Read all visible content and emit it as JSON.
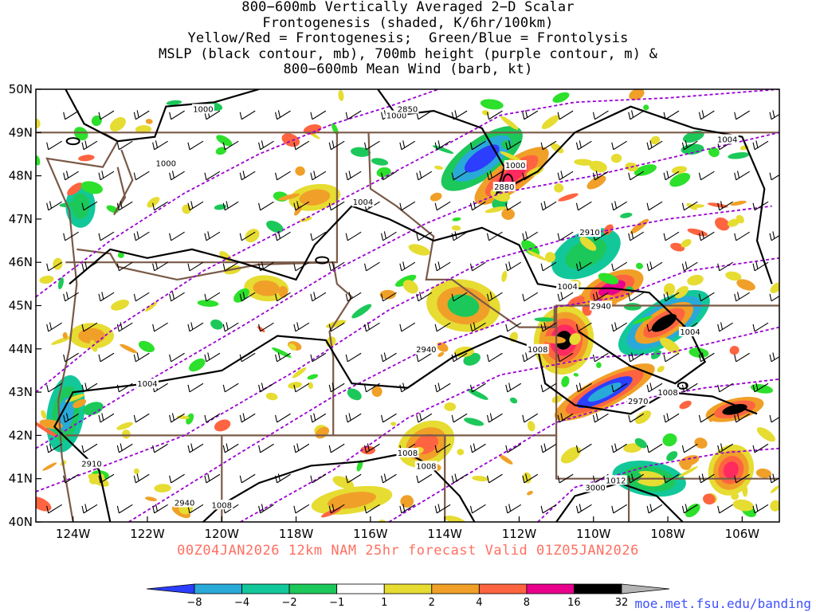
{
  "title_lines": [
    "800−600mb Vertically Averaged 2−D Scalar",
    "Frontogenesis (shaded, K/6hr/100km)",
    "Yellow/Red = Frontogenesis;  Green/Blue = Frontolysis",
    "MSLP (black contour, mb), 700mb height (purple contour, m) &",
    "800−600mb Mean Wind (barb, kt)"
  ],
  "valid_line": "00Z04JAN2026 12km NAM 25hr forecast Valid 01Z05JAN2026",
  "credit": "moe.met.fsu.edu/banding",
  "map": {
    "lon_range": [
      -125,
      -105
    ],
    "lat_range": [
      40,
      50
    ],
    "lon_ticks": [
      {
        "lon": -124,
        "label": "124W"
      },
      {
        "lon": -122,
        "label": "122W"
      },
      {
        "lon": -120,
        "label": "120W"
      },
      {
        "lon": -118,
        "label": "118W"
      },
      {
        "lon": -116,
        "label": "116W"
      },
      {
        "lon": -114,
        "label": "114W"
      },
      {
        "lon": -112,
        "label": "112W"
      },
      {
        "lon": -110,
        "label": "110W"
      },
      {
        "lon": -108,
        "label": "108W"
      },
      {
        "lon": -106,
        "label": "106W"
      }
    ],
    "lat_ticks": [
      {
        "lat": 50,
        "label": "50N"
      },
      {
        "lat": 49,
        "label": "49N"
      },
      {
        "lat": 48,
        "label": "48N"
      },
      {
        "lat": 47,
        "label": "47N"
      },
      {
        "lat": 46,
        "label": "46N"
      },
      {
        "lat": 45,
        "label": "45N"
      },
      {
        "lat": 44,
        "label": "44N"
      },
      {
        "lat": 43,
        "label": "43N"
      },
      {
        "lat": 42,
        "label": "42N"
      },
      {
        "lat": 41,
        "label": "41N"
      },
      {
        "lat": 40,
        "label": "40N"
      }
    ],
    "mslp_labels": [
      {
        "text": "1000",
        "lon": -120.5,
        "lat": 49.55
      },
      {
        "text": "1000",
        "lon": -121.5,
        "lat": 48.3
      },
      {
        "text": "1000",
        "lon": -115.3,
        "lat": 49.4
      },
      {
        "text": "1000",
        "lon": -112.1,
        "lat": 48.25
      },
      {
        "text": "1004",
        "lon": -116.2,
        "lat": 47.4
      },
      {
        "text": "1004",
        "lon": -106.4,
        "lat": 48.85
      },
      {
        "text": "1004",
        "lon": -110.7,
        "lat": 45.45
      },
      {
        "text": "1004",
        "lon": -107.4,
        "lat": 44.4
      },
      {
        "text": "1004",
        "lon": -122.0,
        "lat": 43.2
      },
      {
        "text": "1008",
        "lon": -111.5,
        "lat": 44.0
      },
      {
        "text": "1008",
        "lon": -108.0,
        "lat": 43.0
      },
      {
        "text": "1008",
        "lon": -115.0,
        "lat": 41.6
      },
      {
        "text": "1008",
        "lon": -114.5,
        "lat": 41.3
      },
      {
        "text": "1008",
        "lon": -120.0,
        "lat": 40.4
      },
      {
        "text": "1012",
        "lon": -109.4,
        "lat": 40.97
      }
    ],
    "height_labels": [
      {
        "text": "2850",
        "lon": -115.0,
        "lat": 49.55
      },
      {
        "text": "2880",
        "lon": -112.4,
        "lat": 47.75
      },
      {
        "text": "2910",
        "lon": -110.1,
        "lat": 46.7
      },
      {
        "text": "2940",
        "lon": -109.8,
        "lat": 45.0
      },
      {
        "text": "2940",
        "lon": -114.5,
        "lat": 44.0
      },
      {
        "text": "2970",
        "lon": -108.8,
        "lat": 42.8
      },
      {
        "text": "3000",
        "lon": -109.95,
        "lat": 40.8
      },
      {
        "text": "2910",
        "lon": -123.5,
        "lat": 41.35
      },
      {
        "text": "2940",
        "lon": -121.0,
        "lat": 40.45
      }
    ]
  },
  "colorbar": {
    "ticks": [
      "−8",
      "−4",
      "−2",
      "−1",
      "1",
      "2",
      "4",
      "8",
      "16",
      "32"
    ],
    "colors": [
      "#2c3eff",
      "#29a9d8",
      "#12c89a",
      "#1cc85a",
      "#2ce02c",
      "#ffffff",
      "#e6dc32",
      "#f0a028",
      "#ff6440",
      "#ff2a60",
      "#e8008c",
      "#000000",
      "#b4b4b4"
    ]
  },
  "colors": {
    "frame": "#000000",
    "state_border": "#7a5a48",
    "height_contour": "#9b00d3",
    "mslp_contour": "#000000",
    "barb": "#000000"
  }
}
